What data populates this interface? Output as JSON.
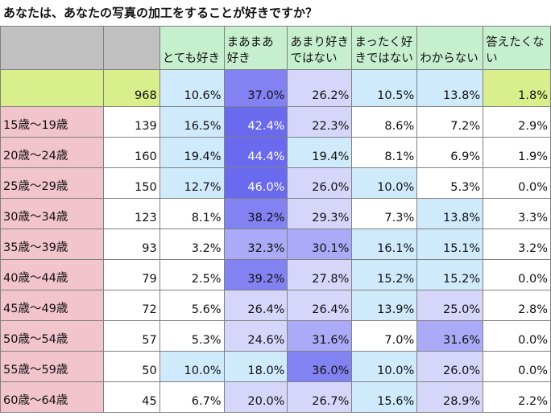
{
  "title": "あなたは、あなたの写真の加工をすることが好きですか？",
  "chart_data": {
    "type": "table",
    "columns": [
      "",
      "",
      "とても好き",
      "まあまあ好き",
      "あまり好きではない",
      "まったく好きではない",
      "わからない",
      "答えたくない"
    ],
    "rows": [
      {
        "label": "",
        "n": "968",
        "values": [
          "10.6%",
          "37.0%",
          "26.2%",
          "10.5%",
          "13.8%",
          "1.8%"
        ]
      },
      {
        "label": "15歳～19歳",
        "n": "139",
        "values": [
          "16.5%",
          "42.4%",
          "22.3%",
          "8.6%",
          "7.2%",
          "2.9%"
        ]
      },
      {
        "label": "20歳～24歳",
        "n": "160",
        "values": [
          "19.4%",
          "44.4%",
          "19.4%",
          "8.1%",
          "6.9%",
          "1.9%"
        ]
      },
      {
        "label": "25歳～29歳",
        "n": "150",
        "values": [
          "12.7%",
          "46.0%",
          "26.0%",
          "10.0%",
          "5.3%",
          "0.0%"
        ]
      },
      {
        "label": "30歳～34歳",
        "n": "123",
        "values": [
          "8.1%",
          "38.2%",
          "29.3%",
          "7.3%",
          "13.8%",
          "3.3%"
        ]
      },
      {
        "label": "35歳～39歳",
        "n": "93",
        "values": [
          "3.2%",
          "32.3%",
          "30.1%",
          "16.1%",
          "15.1%",
          "3.2%"
        ]
      },
      {
        "label": "40歳～44歳",
        "n": "79",
        "values": [
          "2.5%",
          "39.2%",
          "27.8%",
          "15.2%",
          "15.2%",
          "0.0%"
        ]
      },
      {
        "label": "45歳～49歳",
        "n": "72",
        "values": [
          "5.6%",
          "26.4%",
          "26.4%",
          "13.9%",
          "25.0%",
          "2.8%"
        ]
      },
      {
        "label": "50歳～54歳",
        "n": "57",
        "values": [
          "5.3%",
          "24.6%",
          "31.6%",
          "7.0%",
          "31.6%",
          "0.0%"
        ]
      },
      {
        "label": "55歳～59歳",
        "n": "50",
        "values": [
          "10.0%",
          "18.0%",
          "36.0%",
          "10.0%",
          "26.0%",
          "0.0%"
        ]
      },
      {
        "label": "60歳～64歳",
        "n": "45",
        "values": [
          "6.7%",
          "20.0%",
          "26.7%",
          "15.6%",
          "28.9%",
          "2.2%"
        ]
      }
    ]
  },
  "colors": {
    "header_label": "#c0c0c0",
    "header_green": "#c6efce",
    "total_row": "#d9ef8b",
    "age_label": "#f2c4cc",
    "low_blue": "#cfeafb",
    "light_purple": "#d6d6fb",
    "mid_purple": "#aaaaf8",
    "strong_purple": "#8282f2",
    "deep_purple": "#6a6aef"
  }
}
